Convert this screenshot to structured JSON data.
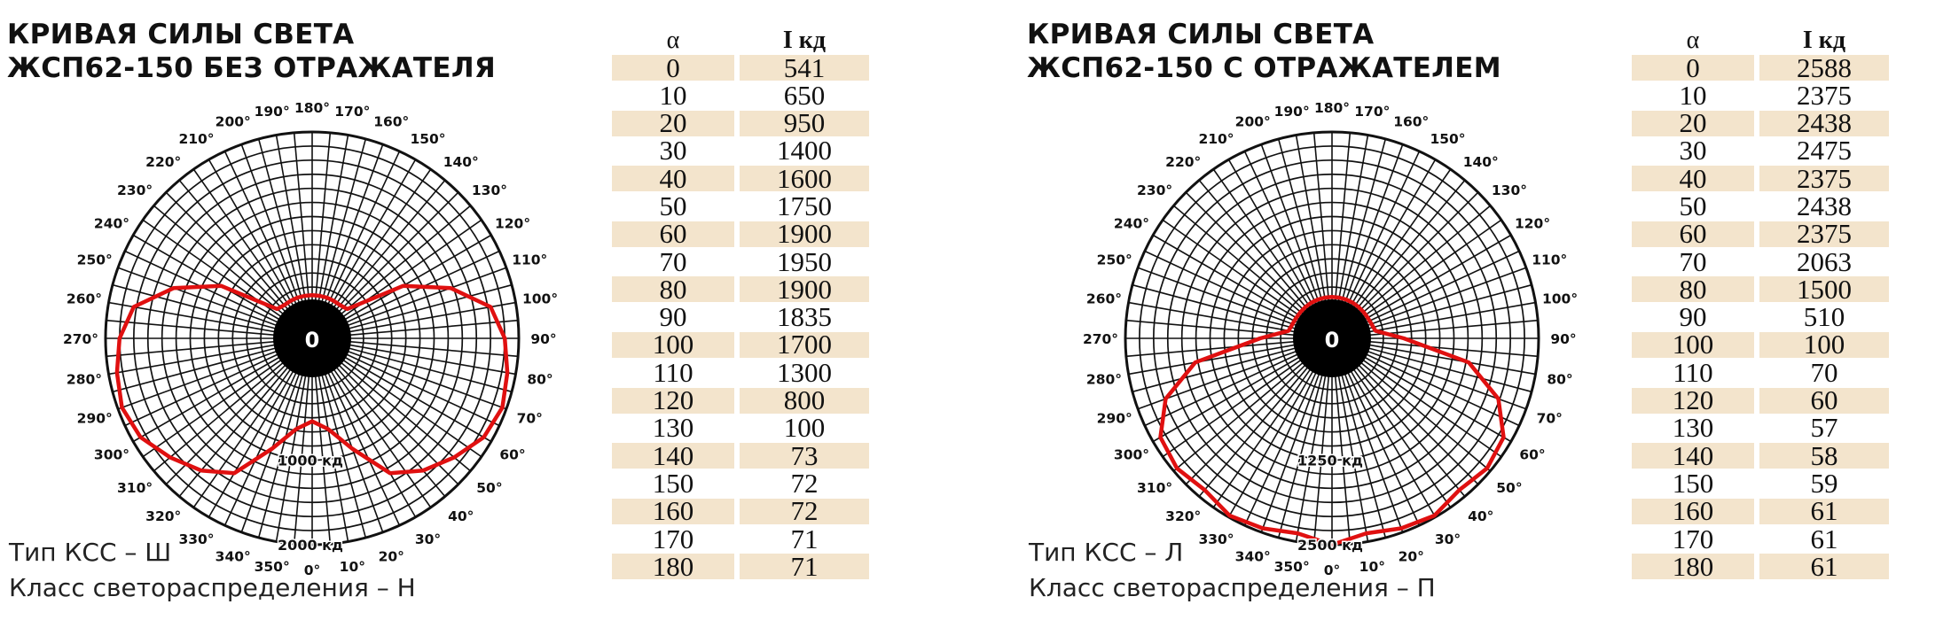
{
  "panels": [
    {
      "title_lines": [
        "КРИВАЯ СИЛЫ СВЕТА",
        "ЖСП62-150 БЕЗ ОТРАЖАТЕЛЯ"
      ],
      "footer_lines": [
        "Тип КСС – Ш",
        "Класс светораспределения – Н"
      ],
      "center_label": "0",
      "ring_labels": [
        "1000 кд",
        "2000 кд"
      ]
    },
    {
      "title_lines": [
        "КРИВАЯ СИЛЫ СВЕТА",
        "ЖСП62-150 С ОТРАЖАТЕЛЕМ"
      ],
      "footer_lines": [
        "Тип КСС – Л",
        "Класс светораспределения – П"
      ],
      "center_label": "0",
      "ring_labels": [
        "1250 кд",
        "2500 кд"
      ]
    }
  ],
  "angle_labels": [
    "0°",
    "10°",
    "20°",
    "30°",
    "40°",
    "50°",
    "60°",
    "70°",
    "80°",
    "90°",
    "100°",
    "110°",
    "120°",
    "130°",
    "140°",
    "150°",
    "160°",
    "170°",
    "180°",
    "190°",
    "200°",
    "210°",
    "220°",
    "230°",
    "240°",
    "250°",
    "260°",
    "270°",
    "280°",
    "290°",
    "300°",
    "310°",
    "320°",
    "330°",
    "340°",
    "350°"
  ],
  "table_headers": {
    "alpha": "α",
    "intensity": "I кд"
  },
  "colors": {
    "curve": "#e01010",
    "shade": "#f3e4cc",
    "grid": "#111111"
  },
  "chart_data": [
    {
      "type": "polar-line",
      "title": "КРИВАЯ СИЛЫ СВЕТА ЖСП62-150 БЕЗ ОТРАЖАТЕЛЯ",
      "angle_unit": "°",
      "intensity_unit": "кд",
      "rmax": 2000,
      "ring_labels_at": [
        1000,
        2000
      ],
      "x": [
        0,
        10,
        20,
        30,
        40,
        50,
        60,
        70,
        80,
        90,
        100,
        110,
        120,
        130,
        140,
        150,
        160,
        170,
        180
      ],
      "values": [
        541,
        650,
        950,
        1400,
        1600,
        1750,
        1900,
        1950,
        1900,
        1835,
        1700,
        1300,
        800,
        100,
        73,
        72,
        72,
        71,
        71
      ],
      "table_labels": [
        "0",
        "10",
        "20",
        "30",
        "40",
        "50",
        "60",
        "70",
        "80",
        "90",
        "100",
        "110",
        "120",
        "130",
        "140",
        "150",
        "160",
        "170",
        "180"
      ],
      "table_values": [
        "541",
        "650",
        "950",
        "1400",
        "1600",
        "1750",
        "1900",
        "1950",
        "1900",
        "1835",
        "1700",
        "1300",
        "800",
        "100",
        "73",
        "72",
        "72",
        "71",
        "71"
      ]
    },
    {
      "type": "polar-line",
      "title": "КРИВАЯ СИЛЫ СВЕТА ЖСП62-150 С ОТРАЖАТЕЛЕМ",
      "angle_unit": "°",
      "intensity_unit": "кд",
      "rmax": 2500,
      "ring_labels_at": [
        1250,
        2500
      ],
      "x": [
        0,
        10,
        20,
        30,
        40,
        50,
        60,
        70,
        80,
        90,
        100,
        110,
        120,
        130,
        140,
        150,
        160,
        170,
        180
      ],
      "values": [
        2588,
        2375,
        2438,
        2475,
        2375,
        2438,
        2375,
        2063,
        1500,
        510,
        100,
        70,
        60,
        57,
        58,
        59,
        61,
        61,
        61
      ],
      "table_labels": [
        "0",
        "10",
        "20",
        "30",
        "40",
        "50",
        "60",
        "70",
        "80",
        "90",
        "100",
        "110",
        "120",
        "130",
        "140",
        "150",
        "160",
        "170",
        "180"
      ],
      "table_values": [
        "2588",
        "2375",
        "2438",
        "2475",
        "2375",
        "2438",
        "2375",
        "2063",
        "1500",
        "510",
        "100",
        "70",
        "60",
        "57",
        "58",
        "59",
        "61",
        "61",
        "61"
      ]
    }
  ]
}
